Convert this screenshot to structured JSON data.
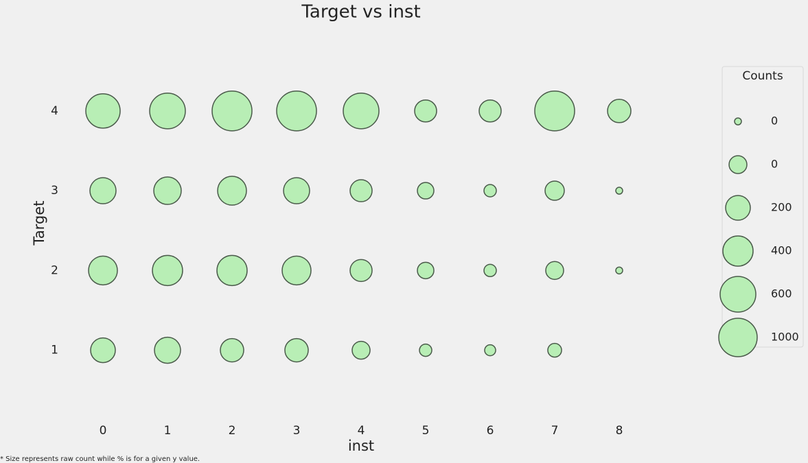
{
  "chart_data": {
    "type": "scatter",
    "title": "Target vs inst",
    "x_label": "inst",
    "y_label": "Target",
    "note": "* Size represents raw count while % is for a given y value.",
    "x": [
      0,
      1,
      2,
      3,
      4,
      5,
      6,
      7,
      8,
      0,
      1,
      2,
      3,
      4,
      5,
      6,
      7,
      8,
      0,
      1,
      2,
      3,
      4,
      5,
      6,
      7,
      8,
      0,
      1,
      2,
      3,
      4,
      5,
      6,
      7
    ],
    "y": [
      4,
      4,
      4,
      4,
      4,
      4,
      4,
      4,
      4,
      3,
      3,
      3,
      3,
      3,
      3,
      3,
      3,
      3,
      2,
      2,
      2,
      2,
      2,
      2,
      2,
      2,
      2,
      1,
      1,
      1,
      1,
      1,
      1,
      1,
      1
    ],
    "sizes": [
      797,
      862,
      1073,
      1073,
      862,
      327,
      327,
      1073,
      369,
      460,
      510,
      563,
      460,
      327,
      184,
      103,
      250,
      32,
      563,
      617,
      617,
      563,
      327,
      184,
      103,
      216,
      32,
      413,
      460,
      369,
      369,
      216,
      103,
      82,
      128
    ],
    "color": "#b8eeb5",
    "edge_color": "#4a5a4a",
    "xlim": [
      -1,
      9.5
    ],
    "ylim": [
      0.3,
      4.6
    ],
    "xticks": [
      0,
      1,
      2,
      3,
      4,
      5,
      6,
      7,
      8
    ],
    "yticks": [
      1,
      2,
      3,
      4
    ],
    "grid": false,
    "legend": {
      "title": "Counts",
      "position": "right",
      "entries": [
        {
          "value": 32,
          "label": "0"
        },
        {
          "value": 215,
          "label": "0"
        },
        {
          "value": 413,
          "label": "200"
        },
        {
          "value": 617,
          "label": "400"
        },
        {
          "value": 862,
          "label": "600"
        },
        {
          "value": 1000,
          "label": "1000"
        }
      ]
    }
  }
}
